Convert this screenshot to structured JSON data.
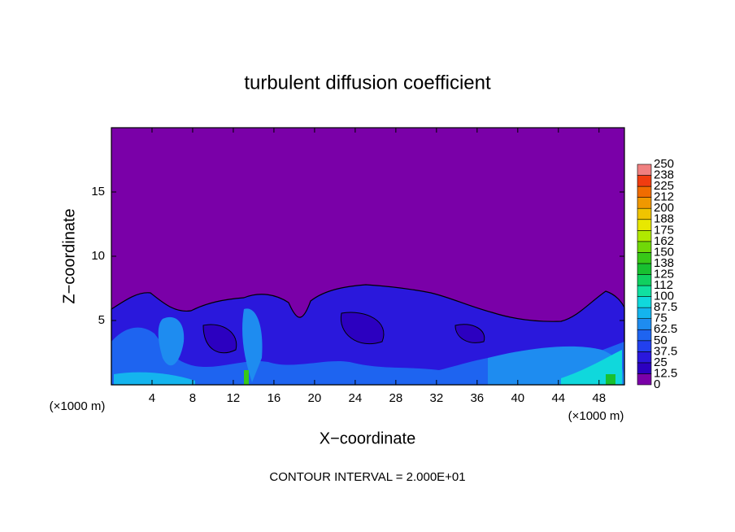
{
  "chart_data": {
    "type": "contour",
    "title": "turbulent diffusion coefficient",
    "x_label": "X−coordinate",
    "y_label": "Z−coordinate",
    "x_unit": "(×1000 m)",
    "y_unit": "(×1000 m)",
    "footer": "CONTOUR INTERVAL = 2.000E+01",
    "xlim": [
      0,
      50.5
    ],
    "xticks": [
      4,
      8,
      12,
      16,
      20,
      24,
      28,
      32,
      36,
      40,
      44,
      48
    ],
    "ylim": [
      0,
      20
    ],
    "yticks": [
      5,
      10,
      15
    ],
    "colorbar": {
      "levels": [
        0,
        12.5,
        25,
        37.5,
        50,
        62.5,
        75,
        87.5,
        100,
        112,
        125,
        138,
        150,
        162,
        175,
        188,
        200,
        212,
        225,
        238,
        250
      ],
      "colors": [
        "#7a00a8",
        "#2c00c0",
        "#2a18dc",
        "#2240ee",
        "#1e64f0",
        "#1e8cf0",
        "#14b4ee",
        "#10d8dc",
        "#10e0a0",
        "#10d060",
        "#18c030",
        "#38c818",
        "#70d808",
        "#b0e800",
        "#e8e800",
        "#f0c400",
        "#f09800",
        "#f06c00",
        "#f03c10",
        "#f08080"
      ]
    }
  }
}
